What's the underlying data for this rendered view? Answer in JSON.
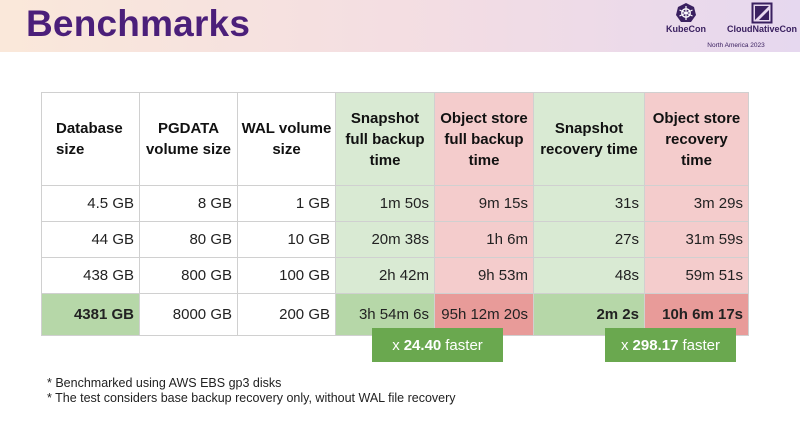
{
  "header": {
    "title": "Benchmarks",
    "logos": {
      "kubecon": "KubeCon",
      "cloudnativecon": "CloudNativeCon",
      "event": "North America 2023"
    }
  },
  "table": {
    "headers": [
      "Database size",
      "PGDATA volume size",
      "WAL volume size",
      "Snapshot full backup time",
      "Object store full backup time",
      "Snapshot recovery time",
      "Object store recovery time"
    ],
    "rows": [
      [
        "4.5 GB",
        "8 GB",
        "1 GB",
        "1m 50s",
        "9m 15s",
        "31s",
        "3m 29s"
      ],
      [
        "44 GB",
        "80 GB",
        "10 GB",
        "20m 38s",
        "1h 6m",
        "27s",
        "31m 59s"
      ],
      [
        "438 GB",
        "800 GB",
        "100 GB",
        "2h 42m",
        "9h 53m",
        "48s",
        "59m 51s"
      ],
      [
        "4381 GB",
        "8000 GB",
        "200 GB",
        "3h 54m 6s",
        "95h 12m 20s",
        "2m 2s",
        "10h 6m 17s"
      ]
    ]
  },
  "callouts": [
    {
      "prefix": "x",
      "value": "24.40",
      "suffix": "faster"
    },
    {
      "prefix": "x",
      "value": "298.17",
      "suffix": "faster"
    }
  ],
  "footnotes": [
    "* Benchmarked using AWS EBS gp3 disks",
    "* The test considers base backup recovery only, without WAL file recovery"
  ],
  "colors": {
    "title": "#4b1f7a",
    "snapshot_cell": "#d9ead3",
    "object_store_cell": "#f4cccc",
    "highlight_green": "#b6d7a8",
    "highlight_red": "#e89b99",
    "callout": "#6aa84f"
  }
}
